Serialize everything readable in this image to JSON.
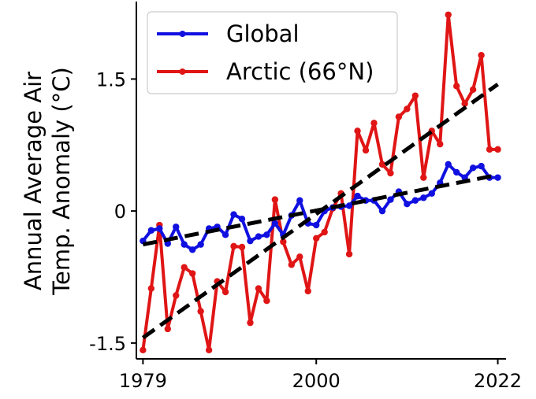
{
  "chart_data": {
    "type": "line",
    "title": "",
    "xlabel": "",
    "ylabel_line1": "Annual Average Air",
    "ylabel_line2": "Temp. Anomaly (°C)",
    "xlim": [
      1978.2,
      2023.0
    ],
    "ylim": [
      -1.68,
      2.38
    ],
    "x_ticks": [
      {
        "value": 1979,
        "label": "1979"
      },
      {
        "value": 2000,
        "label": "2000"
      },
      {
        "value": 2022,
        "label": "2022"
      }
    ],
    "y_ticks": [
      {
        "value": 1.5,
        "label": "1.5"
      },
      {
        "value": 0,
        "label": "0"
      },
      {
        "value": -1.5,
        "label": "-1.5"
      }
    ],
    "legend_position": "top-left",
    "x": [
      1979,
      1980,
      1981,
      1982,
      1983,
      1984,
      1985,
      1986,
      1987,
      1988,
      1989,
      1990,
      1991,
      1992,
      1993,
      1994,
      1995,
      1996,
      1997,
      1998,
      1999,
      2000,
      2001,
      2002,
      2003,
      2004,
      2005,
      2006,
      2007,
      2008,
      2009,
      2010,
      2011,
      2012,
      2013,
      2014,
      2015,
      2016,
      2017,
      2018,
      2019,
      2020,
      2021,
      2022
    ],
    "series": [
      {
        "name": "Global",
        "color": "#1010e0",
        "values": [
          -0.34,
          -0.22,
          -0.2,
          -0.37,
          -0.18,
          -0.38,
          -0.44,
          -0.38,
          -0.2,
          -0.18,
          -0.27,
          -0.04,
          -0.09,
          -0.34,
          -0.29,
          -0.27,
          -0.14,
          -0.27,
          -0.05,
          0.12,
          -0.14,
          -0.16,
          0.0,
          0.04,
          0.05,
          0.06,
          0.17,
          0.12,
          0.12,
          0.0,
          0.13,
          0.22,
          0.08,
          0.12,
          0.15,
          0.2,
          0.32,
          0.53,
          0.44,
          0.38,
          0.49,
          0.51,
          0.38,
          0.38
        ]
      },
      {
        "name": "Arctic (66°N)",
        "color": "#e01515",
        "values": [
          -1.58,
          -0.88,
          -0.16,
          -1.34,
          -0.96,
          -0.64,
          -0.71,
          -1.14,
          -1.58,
          -0.8,
          -0.92,
          -0.4,
          -0.41,
          -1.27,
          -0.88,
          -1.02,
          0.13,
          -0.35,
          -0.61,
          -0.52,
          -0.91,
          -0.31,
          -0.24,
          0.03,
          0.2,
          -0.49,
          0.91,
          0.69,
          1.0,
          0.53,
          0.43,
          1.07,
          1.16,
          1.31,
          0.38,
          0.91,
          0.76,
          2.23,
          1.42,
          1.22,
          1.38,
          1.77,
          0.7,
          0.7
        ]
      }
    ],
    "trend_lines": [
      {
        "name": "Global trend",
        "x": [
          1979,
          2022
        ],
        "y": [
          -0.38,
          0.41
        ]
      },
      {
        "name": "Arctic trend",
        "x": [
          1979,
          2022
        ],
        "y": [
          -1.44,
          1.44
        ]
      }
    ]
  }
}
